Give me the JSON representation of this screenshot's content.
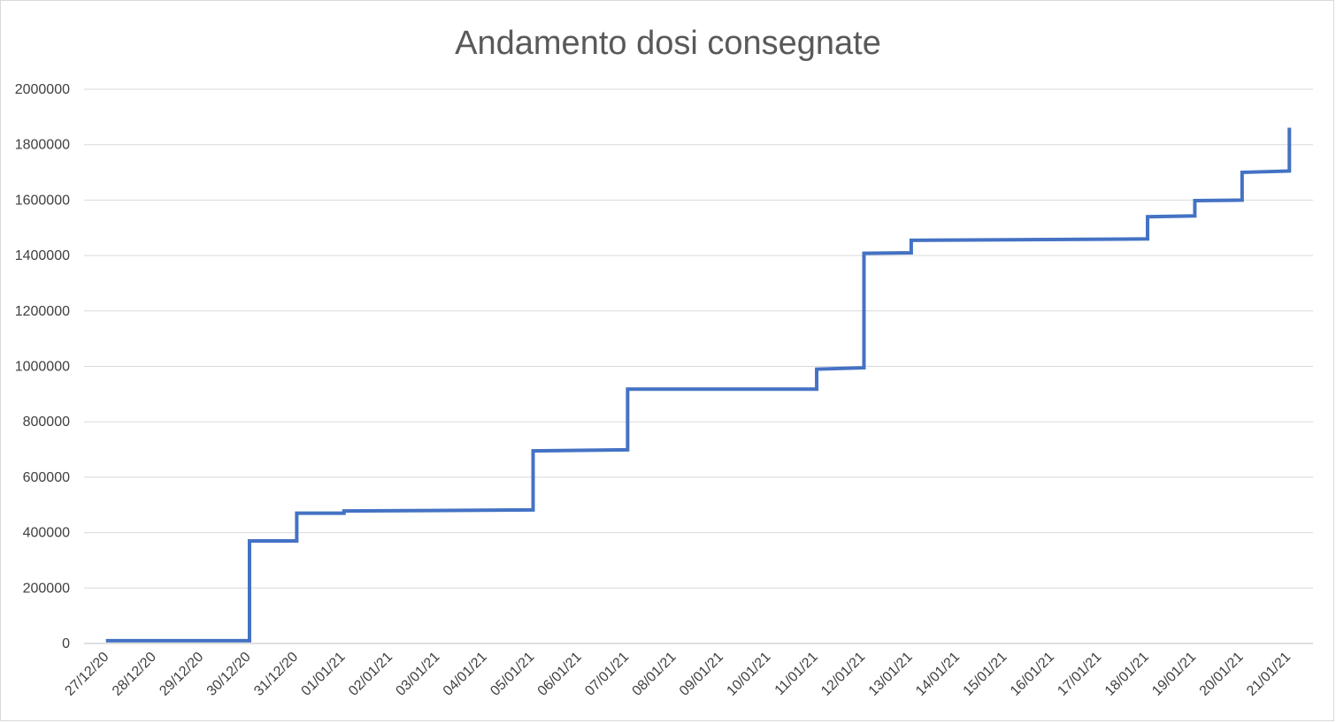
{
  "chart_data": {
    "type": "line",
    "title": "Andamento dosi consegnate",
    "xlabel": "",
    "ylabel": "",
    "ylim": [
      0,
      2000000
    ],
    "y_ticks": [
      0,
      200000,
      400000,
      600000,
      800000,
      1000000,
      1200000,
      1400000,
      1600000,
      1800000,
      2000000
    ],
    "y_tick_labels": [
      "0",
      "200000",
      "400000",
      "600000",
      "800000",
      "1000000",
      "1200000",
      "1400000",
      "1600000",
      "1800000",
      "2000000"
    ],
    "categories": [
      "27/12/20",
      "28/12/20",
      "29/12/20",
      "30/12/20",
      "31/12/20",
      "01/01/21",
      "02/01/21",
      "03/01/21",
      "04/01/21",
      "05/01/21",
      "06/01/21",
      "07/01/21",
      "08/01/21",
      "09/01/21",
      "10/01/21",
      "11/01/21",
      "12/01/21",
      "13/01/21",
      "14/01/21",
      "15/01/21",
      "16/01/21",
      "17/01/21",
      "18/01/21",
      "19/01/21",
      "20/01/21",
      "21/01/21"
    ],
    "grid": true,
    "legend": "none",
    "colors": {
      "series": "#4472c4",
      "grid": "#d9d9d9",
      "title": "#595959",
      "tick": "#404040"
    },
    "series": [
      {
        "x": [
          "27/12/20",
          "30/12/20",
          "30/12/20",
          "31/12/20",
          "31/12/20",
          "01/01/21",
          "01/01/21",
          "05/01/21",
          "05/01/21",
          "07/01/21",
          "07/01/21",
          "11/01/21",
          "11/01/21",
          "12/01/21",
          "12/01/21",
          "13/01/21",
          "13/01/21",
          "18/01/21",
          "18/01/21",
          "19/01/21",
          "19/01/21",
          "20/01/21",
          "20/01/21",
          "21/01/21",
          "21/01/21"
        ],
        "values": [
          10000,
          10000,
          370000,
          370000,
          470000,
          470000,
          478000,
          482000,
          695000,
          699000,
          918000,
          918000,
          990000,
          995000,
          1408000,
          1410000,
          1455000,
          1460000,
          1540000,
          1543000,
          1598000,
          1600000,
          1700000,
          1705000,
          1855000
        ]
      }
    ]
  }
}
